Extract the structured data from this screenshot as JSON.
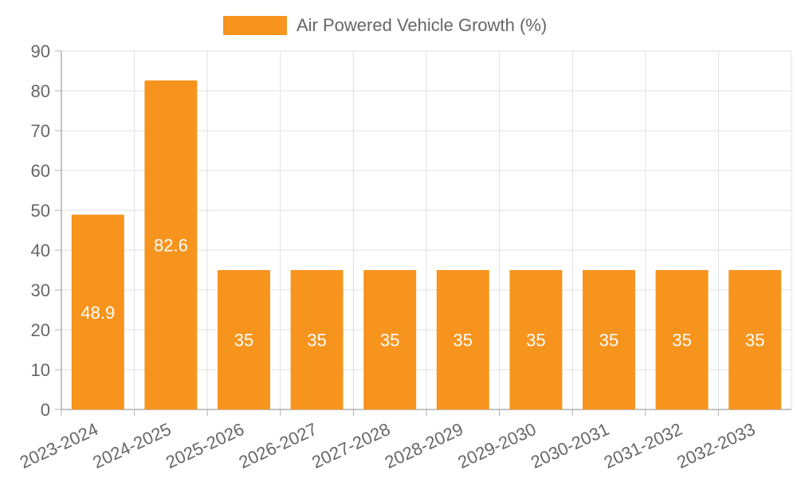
{
  "colors": {
    "bar": "#f7941e",
    "grid": "#e0e0e0",
    "axis": "#b0b0b0",
    "text": "#666666",
    "data_label": "#ffffff"
  },
  "chart_data": {
    "type": "bar",
    "categories": [
      "2023-2024",
      "2024-2025",
      "2025-2026",
      "2026-2027",
      "2027-2028",
      "2028-2029",
      "2029-2030",
      "2030-2031",
      "2031-2032",
      "2032-2033"
    ],
    "series": [
      {
        "name": "Air Powered Vehicle Growth (%)",
        "values": [
          48.9,
          82.6,
          35,
          35,
          35,
          35,
          35,
          35,
          35,
          35
        ],
        "data_labels": [
          "48.9",
          "82.6",
          "35",
          "35",
          "35",
          "35",
          "35",
          "35",
          "35",
          "35"
        ]
      }
    ],
    "ylim": [
      0,
      90
    ],
    "yticks": [
      "0",
      "10",
      "20",
      "30",
      "40",
      "50",
      "60",
      "70",
      "80",
      "90"
    ],
    "legend_position": "top-center",
    "grid": true
  }
}
